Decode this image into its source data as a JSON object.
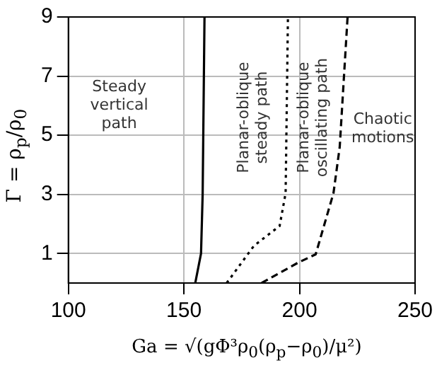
{
  "chart_data": {
    "type": "line",
    "xlabel": "Ga = √(gΦ³ρ$_{0}$(ρ$_{p}$−ρ$_{0}$)/μ²)",
    "ylabel": "Γ = ρ$_{p}$/ρ$_{0}$",
    "xlim": [
      100,
      250
    ],
    "xticks": [
      100,
      150,
      200,
      250
    ],
    "ylim": [
      0,
      9
    ],
    "yticks": [
      1,
      3,
      5,
      7,
      9
    ],
    "grid": true,
    "legend": false,
    "marker": "none",
    "series": [
      {
        "color": "#000000",
        "line_style": "solid",
        "x": [
          154.9,
          157.4,
          158.1,
          158.9
        ],
        "values": [
          0,
          1,
          3,
          9
        ]
      },
      {
        "color": "#000000",
        "line_style": "dotted",
        "x": [
          168.5,
          180.3,
          191.4,
          194,
          195
        ],
        "values": [
          0,
          1.26,
          1.93,
          3.04,
          9
        ]
      },
      {
        "color": "#000000",
        "line_style": "dashed",
        "x": [
          183.6,
          199.4,
          207,
          214.7,
          217.4,
          220.8
        ],
        "values": [
          0,
          0.69,
          0.97,
          3.04,
          4.6,
          9
        ]
      }
    ],
    "annotations": [
      "Steady\nvertical\npath",
      "Planar-oblique\nsteady path",
      "Planar-oblique\noscillating path",
      "Chaotic\nmotions"
    ]
  }
}
